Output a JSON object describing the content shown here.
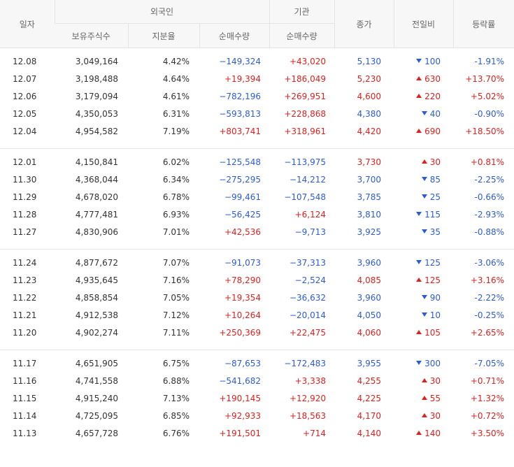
{
  "headers": {
    "date": "일자",
    "foreign": "외국인",
    "institution": "기관",
    "close": "종가",
    "change": "전일비",
    "rate": "등락률",
    "holdings": "보유주식수",
    "ratio": "지분율",
    "foreign_net": "순매수량",
    "inst_net": "순매수량"
  },
  "colors": {
    "up": "#e0201e",
    "down": "#2d5bd6"
  },
  "icons": {
    "up": "triangle-up-icon",
    "down": "triangle-down-icon"
  },
  "groups": [
    [
      {
        "date": "12.08",
        "holdings": "3,049,164",
        "ratio": "4.42%",
        "fnet": "−149,324",
        "fdir": "down",
        "inet": "+43,020",
        "idir": "up",
        "close": "5,130",
        "cdir": "down",
        "chg": "100",
        "chgdir": "down",
        "rate": "-1.91%",
        "rdir": "down"
      },
      {
        "date": "12.07",
        "holdings": "3,198,488",
        "ratio": "4.64%",
        "fnet": "+19,394",
        "fdir": "up",
        "inet": "+186,049",
        "idir": "up",
        "close": "5,230",
        "cdir": "up",
        "chg": "630",
        "chgdir": "up",
        "rate": "+13.70%",
        "rdir": "up"
      },
      {
        "date": "12.06",
        "holdings": "3,179,094",
        "ratio": "4.61%",
        "fnet": "−782,196",
        "fdir": "down",
        "inet": "+269,951",
        "idir": "up",
        "close": "4,600",
        "cdir": "up",
        "chg": "220",
        "chgdir": "up",
        "rate": "+5.02%",
        "rdir": "up"
      },
      {
        "date": "12.05",
        "holdings": "4,350,053",
        "ratio": "6.31%",
        "fnet": "−593,813",
        "fdir": "down",
        "inet": "+228,868",
        "idir": "up",
        "close": "4,380",
        "cdir": "down",
        "chg": "40",
        "chgdir": "down",
        "rate": "-0.90%",
        "rdir": "down"
      },
      {
        "date": "12.04",
        "holdings": "4,954,582",
        "ratio": "7.19%",
        "fnet": "+803,741",
        "fdir": "up",
        "inet": "+318,961",
        "idir": "up",
        "close": "4,420",
        "cdir": "up",
        "chg": "690",
        "chgdir": "up",
        "rate": "+18.50%",
        "rdir": "up"
      }
    ],
    [
      {
        "date": "12.01",
        "holdings": "4,150,841",
        "ratio": "6.02%",
        "fnet": "−125,548",
        "fdir": "down",
        "inet": "−113,975",
        "idir": "down",
        "close": "3,730",
        "cdir": "up",
        "chg": "30",
        "chgdir": "up",
        "rate": "+0.81%",
        "rdir": "up"
      },
      {
        "date": "11.30",
        "holdings": "4,368,044",
        "ratio": "6.34%",
        "fnet": "−275,295",
        "fdir": "down",
        "inet": "−14,212",
        "idir": "down",
        "close": "3,700",
        "cdir": "down",
        "chg": "85",
        "chgdir": "down",
        "rate": "-2.25%",
        "rdir": "down"
      },
      {
        "date": "11.29",
        "holdings": "4,678,020",
        "ratio": "6.78%",
        "fnet": "−99,461",
        "fdir": "down",
        "inet": "−107,548",
        "idir": "down",
        "close": "3,785",
        "cdir": "down",
        "chg": "25",
        "chgdir": "down",
        "rate": "-0.66%",
        "rdir": "down"
      },
      {
        "date": "11.28",
        "holdings": "4,777,481",
        "ratio": "6.93%",
        "fnet": "−56,425",
        "fdir": "down",
        "inet": "+6,124",
        "idir": "up",
        "close": "3,810",
        "cdir": "down",
        "chg": "115",
        "chgdir": "down",
        "rate": "-2.93%",
        "rdir": "down"
      },
      {
        "date": "11.27",
        "holdings": "4,830,906",
        "ratio": "7.01%",
        "fnet": "+42,536",
        "fdir": "up",
        "inet": "−9,713",
        "idir": "down",
        "close": "3,925",
        "cdir": "down",
        "chg": "35",
        "chgdir": "down",
        "rate": "-0.88%",
        "rdir": "down"
      }
    ],
    [
      {
        "date": "11.24",
        "holdings": "4,877,672",
        "ratio": "7.07%",
        "fnet": "−91,073",
        "fdir": "down",
        "inet": "−37,313",
        "idir": "down",
        "close": "3,960",
        "cdir": "down",
        "chg": "125",
        "chgdir": "down",
        "rate": "-3.06%",
        "rdir": "down"
      },
      {
        "date": "11.23",
        "holdings": "4,935,645",
        "ratio": "7.16%",
        "fnet": "+78,290",
        "fdir": "up",
        "inet": "−2,524",
        "idir": "down",
        "close": "4,085",
        "cdir": "up",
        "chg": "125",
        "chgdir": "up",
        "rate": "+3.16%",
        "rdir": "up"
      },
      {
        "date": "11.22",
        "holdings": "4,858,854",
        "ratio": "7.05%",
        "fnet": "+19,354",
        "fdir": "up",
        "inet": "−36,632",
        "idir": "down",
        "close": "3,960",
        "cdir": "down",
        "chg": "90",
        "chgdir": "down",
        "rate": "-2.22%",
        "rdir": "down"
      },
      {
        "date": "11.21",
        "holdings": "4,912,538",
        "ratio": "7.12%",
        "fnet": "+10,264",
        "fdir": "up",
        "inet": "−20,014",
        "idir": "down",
        "close": "4,050",
        "cdir": "down",
        "chg": "10",
        "chgdir": "down",
        "rate": "-0.25%",
        "rdir": "down"
      },
      {
        "date": "11.20",
        "holdings": "4,902,274",
        "ratio": "7.11%",
        "fnet": "+250,369",
        "fdir": "up",
        "inet": "+22,475",
        "idir": "up",
        "close": "4,060",
        "cdir": "up",
        "chg": "105",
        "chgdir": "up",
        "rate": "+2.65%",
        "rdir": "up"
      }
    ],
    [
      {
        "date": "11.17",
        "holdings": "4,651,905",
        "ratio": "6.75%",
        "fnet": "−87,653",
        "fdir": "down",
        "inet": "−172,483",
        "idir": "down",
        "close": "3,955",
        "cdir": "down",
        "chg": "300",
        "chgdir": "down",
        "rate": "-7.05%",
        "rdir": "down"
      },
      {
        "date": "11.16",
        "holdings": "4,741,558",
        "ratio": "6.88%",
        "fnet": "−541,682",
        "fdir": "down",
        "inet": "+3,338",
        "idir": "up",
        "close": "4,255",
        "cdir": "up",
        "chg": "30",
        "chgdir": "up",
        "rate": "+0.71%",
        "rdir": "up"
      },
      {
        "date": "11.15",
        "holdings": "4,915,240",
        "ratio": "7.13%",
        "fnet": "+190,145",
        "fdir": "up",
        "inet": "+12,920",
        "idir": "up",
        "close": "4,225",
        "cdir": "up",
        "chg": "55",
        "chgdir": "up",
        "rate": "+1.32%",
        "rdir": "up"
      },
      {
        "date": "11.14",
        "holdings": "4,725,095",
        "ratio": "6.85%",
        "fnet": "+92,933",
        "fdir": "up",
        "inet": "+18,563",
        "idir": "up",
        "close": "4,170",
        "cdir": "up",
        "chg": "30",
        "chgdir": "up",
        "rate": "+0.72%",
        "rdir": "up"
      },
      {
        "date": "11.13",
        "holdings": "4,657,728",
        "ratio": "6.76%",
        "fnet": "+191,501",
        "fdir": "up",
        "inet": "+714",
        "idir": "up",
        "close": "4,140",
        "cdir": "up",
        "chg": "140",
        "chgdir": "up",
        "rate": "+3.50%",
        "rdir": "up"
      }
    ]
  ]
}
